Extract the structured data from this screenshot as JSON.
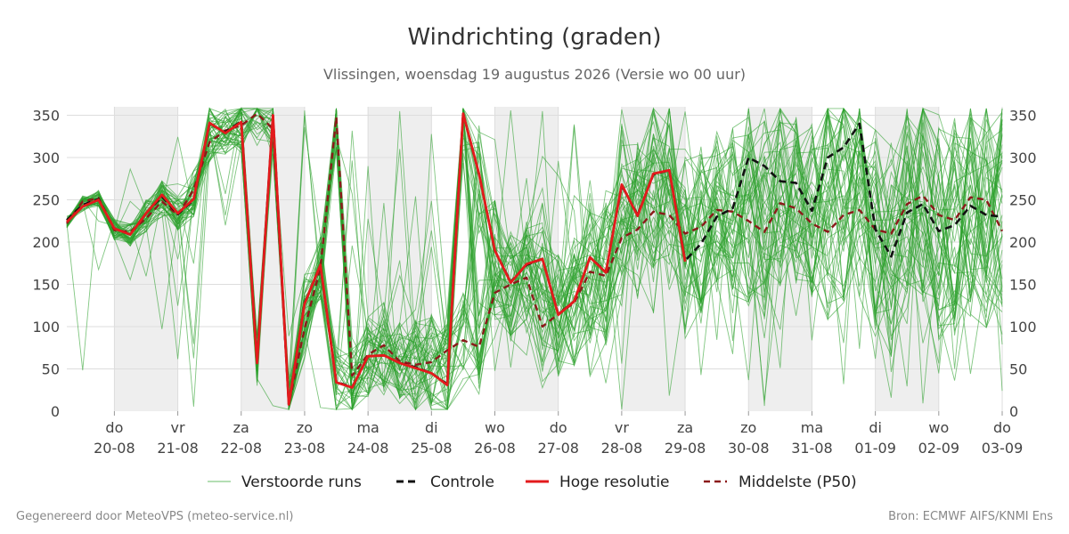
{
  "chart_data": {
    "type": "line",
    "title": "Windrichting (graden)",
    "subtitle": "Vlissingen, woensdag 19 augustus 2026 (Versie wo 00 uur)",
    "ylim": [
      0,
      360
    ],
    "y_ticks": [
      0,
      50,
      100,
      150,
      200,
      250,
      300,
      350
    ],
    "xlim": [
      -0.75,
      14
    ],
    "x_ticks": [
      {
        "x": 0,
        "day": "do",
        "date": "20-08"
      },
      {
        "x": 1,
        "day": "vr",
        "date": "21-08"
      },
      {
        "x": 2,
        "day": "za",
        "date": "22-08"
      },
      {
        "x": 3,
        "day": "zo",
        "date": "23-08"
      },
      {
        "x": 4,
        "day": "ma",
        "date": "24-08"
      },
      {
        "x": 5,
        "day": "di",
        "date": "25-08"
      },
      {
        "x": 6,
        "day": "wo",
        "date": "26-08"
      },
      {
        "x": 7,
        "day": "do",
        "date": "27-08"
      },
      {
        "x": 8,
        "day": "vr",
        "date": "28-08"
      },
      {
        "x": 9,
        "day": "za",
        "date": "29-08"
      },
      {
        "x": 10,
        "day": "zo",
        "date": "30-08"
      },
      {
        "x": 11,
        "day": "ma",
        "date": "31-08"
      },
      {
        "x": 12,
        "day": "di",
        "date": "01-09"
      },
      {
        "x": 13,
        "day": "wo",
        "date": "02-09"
      },
      {
        "x": 14,
        "day": "do",
        "date": "03-09"
      }
    ],
    "shaded_days": [
      [
        0,
        1
      ],
      [
        2,
        3
      ],
      [
        4,
        5
      ],
      [
        6,
        7
      ],
      [
        8,
        9
      ],
      [
        10,
        11
      ],
      [
        12,
        13
      ]
    ],
    "grid": true,
    "legend_position": "bottom",
    "colors": {
      "ensemble": "#2ca02c",
      "control": "#111111",
      "high_res": "#e31a1c",
      "median": "#8b1a1a",
      "shade": "#eeeeee",
      "grid": "#dddddd"
    },
    "series": [
      {
        "name": "Controle",
        "style": "dashed",
        "x": [
          -0.75,
          -0.5,
          -0.25,
          0,
          0.25,
          0.5,
          0.75,
          1,
          1.25,
          1.5,
          1.75,
          2,
          2.25,
          2.5,
          2.75,
          3,
          3.25,
          3.5,
          3.75,
          4,
          4.25,
          4.5,
          4.75,
          5,
          5.25,
          5.5,
          5.75,
          6,
          6.25,
          6.5,
          6.75,
          7,
          7.25,
          7.5,
          7.75,
          8,
          8.25,
          8.5,
          8.75,
          9,
          9.25,
          9.5,
          9.75,
          10,
          10.25,
          10.5,
          10.75,
          11,
          11.25,
          11.5,
          11.75,
          12,
          12.25,
          12.5,
          12.75,
          13,
          13.25,
          13.5,
          13.75,
          14
        ],
        "values": [
          226,
          244,
          251,
          216,
          209,
          234,
          254,
          233,
          250,
          340,
          330,
          343,
          58,
          350,
          8,
          128,
          172,
          35,
          28,
          65,
          66,
          57,
          52,
          45,
          32,
          352,
          280,
          190,
          153,
          173,
          180,
          115,
          130,
          182,
          165,
          267,
          232,
          280,
          285,
          178,
          198,
          230,
          240,
          300,
          290,
          272,
          270,
          237,
          300,
          312,
          340,
          215,
          183,
          235,
          245,
          213,
          220,
          243,
          232,
          230
        ]
      },
      {
        "name": "Hoge resolutie",
        "style": "solid",
        "x": [
          -0.75,
          -0.5,
          -0.25,
          0,
          0.25,
          0.5,
          0.75,
          1,
          1.25,
          1.5,
          1.75,
          2,
          2.25,
          2.5,
          2.75,
          3,
          3.25,
          3.5,
          3.75,
          4,
          4.25,
          4.5,
          4.75,
          5,
          5.25,
          5.5,
          5.75,
          6,
          6.25,
          6.5,
          6.75,
          7,
          7.25,
          7.5,
          7.75,
          8,
          8.25,
          8.5,
          8.75,
          9
        ],
        "values": [
          224,
          242,
          250,
          216,
          209,
          234,
          256,
          234,
          251,
          341,
          329,
          342,
          57,
          350,
          8,
          127,
          173,
          34,
          28,
          65,
          66,
          57,
          51,
          45,
          31,
          352,
          281,
          190,
          152,
          174,
          180,
          114,
          130,
          182,
          164,
          268,
          231,
          281,
          285,
          177
        ]
      },
      {
        "name": "Middelste (P50)",
        "style": "dashed",
        "x": [
          -0.75,
          -0.5,
          -0.25,
          0,
          0.25,
          0.5,
          0.75,
          1,
          1.25,
          1.5,
          1.75,
          2,
          2.25,
          2.5,
          2.75,
          3,
          3.25,
          3.5,
          3.75,
          4,
          4.25,
          4.5,
          4.75,
          5,
          5.25,
          5.5,
          5.75,
          6,
          6.25,
          6.5,
          6.75,
          7,
          7.25,
          7.5,
          7.75,
          8,
          8.25,
          8.5,
          8.75,
          9,
          9.25,
          9.5,
          9.75,
          10,
          10.25,
          10.5,
          10.75,
          11,
          11.25,
          11.5,
          11.75,
          12,
          12.25,
          12.5,
          12.75,
          13,
          13.25,
          13.5,
          13.75,
          14
        ],
        "values": [
          222,
          248,
          252,
          214,
          212,
          228,
          248,
          232,
          262,
          318,
          332,
          338,
          352,
          334,
          8,
          98,
          170,
          348,
          42,
          67,
          78,
          59,
          55,
          58,
          72,
          84,
          76,
          140,
          150,
          158,
          100,
          115,
          128,
          165,
          160,
          205,
          215,
          236,
          232,
          210,
          218,
          238,
          236,
          225,
          212,
          246,
          240,
          222,
          212,
          232,
          238,
          215,
          210,
          245,
          255,
          232,
          226,
          253,
          250,
          213
        ]
      },
      {
        "name": "Verstoorde runs",
        "style": "thin",
        "count": 50
      }
    ]
  },
  "legend": {
    "ensemble": "Verstoorde runs",
    "control": "Controle",
    "high_res": "Hoge resolutie",
    "median": "Middelste (P50)"
  },
  "footer": {
    "left": "Gegenereerd door MeteoVPS (meteo-service.nl)",
    "right": "Bron: ECMWF AIFS/KNMI Ens"
  }
}
